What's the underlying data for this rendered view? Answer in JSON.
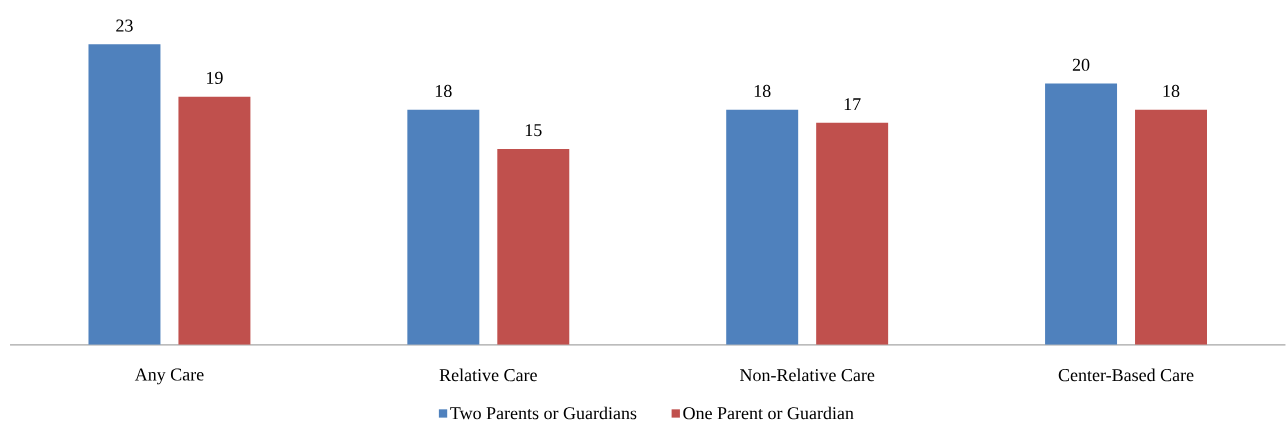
{
  "chart_data": {
    "type": "bar",
    "categories": [
      "Any Care",
      "Relative Care",
      "Non-Relative Care",
      "Center-Based Care"
    ],
    "series": [
      {
        "name": "Two Parents or Guardians",
        "color": "#4f81bd",
        "values": [
          23,
          18,
          18,
          20
        ]
      },
      {
        "name": "One Parent or Guardian",
        "color": "#c0504d",
        "values": [
          19,
          15,
          17,
          18
        ]
      }
    ],
    "data_labels": true,
    "legend": "bottom"
  }
}
